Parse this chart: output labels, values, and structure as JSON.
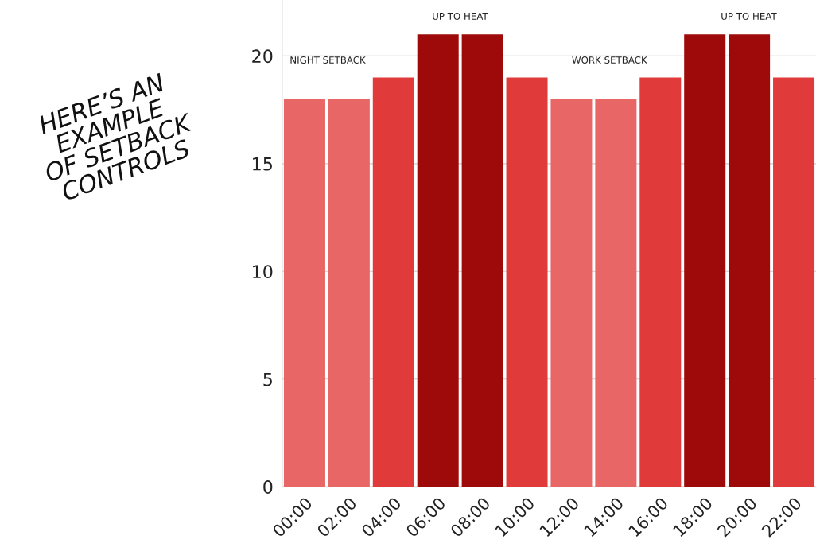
{
  "chart_data": {
    "type": "bar",
    "title": "HERE’S AN\nEXAMPLE\nOF SETBACK\nCONTROLS",
    "categories": [
      "00:00",
      "02:00",
      "04:00",
      "06:00",
      "08:00",
      "10:00",
      "12:00",
      "14:00",
      "16:00",
      "18:00",
      "20:00",
      "22:00"
    ],
    "values": [
      18,
      18,
      19,
      21,
      21,
      19,
      18,
      18,
      19,
      21,
      21,
      19
    ],
    "colors": [
      "#e86666",
      "#e86666",
      "#e03a3a",
      "#9e0a0a",
      "#9e0a0a",
      "#e03a3a",
      "#e86666",
      "#e86666",
      "#e03a3a",
      "#9e0a0a",
      "#9e0a0a",
      "#e03a3a"
    ],
    "ylim": [
      0,
      22.6
    ],
    "yticks": [
      0,
      5,
      10,
      15,
      20
    ],
    "grid": "y",
    "annotations": [
      "NIGHT SETBACK",
      "UP TO HEAT",
      "WORK SETBACK",
      "UP TO HEAT"
    ]
  }
}
